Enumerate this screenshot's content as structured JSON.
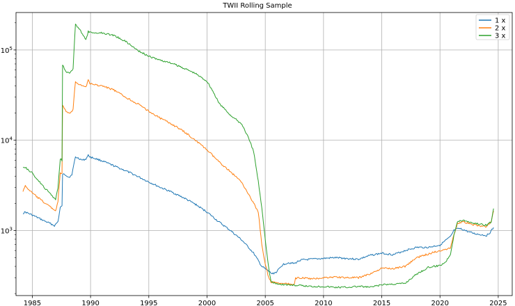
{
  "chart_data": {
    "type": "line",
    "title": "TWII Rolling Sample",
    "xlabel": "",
    "ylabel": "",
    "yscale": "log",
    "xlim": [
      1983.6,
      2026.2
    ],
    "ylim": [
      190,
      260000
    ],
    "grid": true,
    "legend_position": "top-right",
    "x_ticks": [
      1985,
      1990,
      1995,
      2000,
      2005,
      2010,
      2015,
      2020,
      2025
    ],
    "x_tick_labels": [
      "1985",
      "1990",
      "1995",
      "2000",
      "2005",
      "2010",
      "2015",
      "2020",
      "2025"
    ],
    "y_ticks": [
      1000,
      10000,
      100000
    ],
    "y_tick_labels": [
      {
        "base": "10",
        "exp": "3"
      },
      {
        "base": "10",
        "exp": "4"
      },
      {
        "base": "10",
        "exp": "5"
      }
    ],
    "series": [
      {
        "name": "1 x",
        "color": "#1f77b4",
        "points": [
          [
            1984.2,
            1550
          ],
          [
            1984.4,
            1600
          ],
          [
            1985.0,
            1480
          ],
          [
            1985.5,
            1380
          ],
          [
            1986.0,
            1280
          ],
          [
            1986.5,
            1200
          ],
          [
            1986.9,
            1130
          ],
          [
            1987.2,
            1250
          ],
          [
            1987.4,
            1800
          ],
          [
            1987.55,
            1850
          ],
          [
            1987.6,
            4200
          ],
          [
            1987.9,
            4100
          ],
          [
            1988.2,
            3900
          ],
          [
            1988.4,
            4200
          ],
          [
            1988.7,
            6500
          ],
          [
            1989.0,
            6300
          ],
          [
            1989.3,
            6000
          ],
          [
            1989.6,
            6200
          ],
          [
            1989.8,
            6800
          ],
          [
            1990.0,
            6500
          ],
          [
            1990.5,
            6200
          ],
          [
            1991.0,
            5900
          ],
          [
            1992.0,
            5200
          ],
          [
            1993.0,
            4600
          ],
          [
            1994.0,
            4000
          ],
          [
            1995.0,
            3450
          ],
          [
            1996.0,
            3000
          ],
          [
            1997.0,
            2650
          ],
          [
            1998.0,
            2300
          ],
          [
            1999.0,
            1950
          ],
          [
            2000.0,
            1600
          ],
          [
            2001.0,
            1250
          ],
          [
            2002.0,
            1000
          ],
          [
            2003.0,
            780
          ],
          [
            2004.0,
            560
          ],
          [
            2004.7,
            400
          ],
          [
            2005.2,
            360
          ],
          [
            2005.6,
            330
          ],
          [
            2006.0,
            350
          ],
          [
            2006.5,
            420
          ],
          [
            2007.0,
            440
          ],
          [
            2007.5,
            430
          ],
          [
            2008.0,
            470
          ],
          [
            2009.0,
            480
          ],
          [
            2010.0,
            490
          ],
          [
            2011.0,
            500
          ],
          [
            2012.0,
            490
          ],
          [
            2013.0,
            480
          ],
          [
            2014.0,
            530
          ],
          [
            2015.0,
            560
          ],
          [
            2016.0,
            540
          ],
          [
            2017.0,
            600
          ],
          [
            2018.0,
            650
          ],
          [
            2019.0,
            650
          ],
          [
            2020.0,
            690
          ],
          [
            2020.5,
            780
          ],
          [
            2020.9,
            850
          ],
          [
            2021.2,
            1000
          ],
          [
            2021.6,
            1050
          ],
          [
            2022.0,
            1020
          ],
          [
            2022.5,
            960
          ],
          [
            2023.0,
            920
          ],
          [
            2023.5,
            900
          ],
          [
            2024.0,
            880
          ],
          [
            2024.3,
            950
          ],
          [
            2024.6,
            1080
          ]
        ]
      },
      {
        "name": "2 x",
        "color": "#ff7f0e",
        "points": [
          [
            1984.2,
            2750
          ],
          [
            1984.4,
            3100
          ],
          [
            1985.0,
            2600
          ],
          [
            1985.5,
            2300
          ],
          [
            1986.0,
            2050
          ],
          [
            1986.5,
            1850
          ],
          [
            1987.0,
            1650
          ],
          [
            1987.2,
            2100
          ],
          [
            1987.4,
            4400
          ],
          [
            1987.55,
            4200
          ],
          [
            1987.6,
            24000
          ],
          [
            1987.9,
            21000
          ],
          [
            1988.2,
            19500
          ],
          [
            1988.5,
            22000
          ],
          [
            1988.7,
            45000
          ],
          [
            1989.0,
            42000
          ],
          [
            1989.3,
            40000
          ],
          [
            1989.6,
            39000
          ],
          [
            1989.8,
            46000
          ],
          [
            1990.0,
            42000
          ],
          [
            1991.0,
            40000
          ],
          [
            1992.0,
            36000
          ],
          [
            1993.0,
            30000
          ],
          [
            1994.0,
            25500
          ],
          [
            1995.0,
            21000
          ],
          [
            1996.0,
            17500
          ],
          [
            1997.0,
            15000
          ],
          [
            1998.0,
            12500
          ],
          [
            1999.0,
            10000
          ],
          [
            2000.0,
            7800
          ],
          [
            2001.0,
            5800
          ],
          [
            2002.0,
            4500
          ],
          [
            2003.0,
            3400
          ],
          [
            2004.0,
            2000
          ],
          [
            2004.4,
            1600
          ],
          [
            2004.7,
            700
          ],
          [
            2005.0,
            420
          ],
          [
            2005.3,
            300
          ],
          [
            2005.5,
            270
          ],
          [
            2006.0,
            260
          ],
          [
            2007.0,
            255
          ],
          [
            2007.5,
            250
          ],
          [
            2007.6,
            295
          ],
          [
            2008.0,
            300
          ],
          [
            2009.0,
            290
          ],
          [
            2010.0,
            300
          ],
          [
            2011.0,
            305
          ],
          [
            2012.0,
            300
          ],
          [
            2013.0,
            300
          ],
          [
            2014.0,
            330
          ],
          [
            2015.0,
            380
          ],
          [
            2016.0,
            380
          ],
          [
            2017.0,
            400
          ],
          [
            2018.0,
            500
          ],
          [
            2019.0,
            550
          ],
          [
            2020.0,
            600
          ],
          [
            2020.5,
            620
          ],
          [
            2020.9,
            650
          ],
          [
            2021.2,
            900
          ],
          [
            2021.5,
            1200
          ],
          [
            2022.0,
            1250
          ],
          [
            2023.0,
            1150
          ],
          [
            2024.0,
            1100
          ],
          [
            2024.4,
            1250
          ],
          [
            2024.6,
            1650
          ]
        ]
      },
      {
        "name": "3 x",
        "color": "#2ca02c",
        "points": [
          [
            1984.2,
            5100
          ],
          [
            1984.4,
            5000
          ],
          [
            1985.0,
            4300
          ],
          [
            1985.5,
            3600
          ],
          [
            1986.0,
            3000
          ],
          [
            1986.5,
            2600
          ],
          [
            1987.0,
            2200
          ],
          [
            1987.2,
            3000
          ],
          [
            1987.4,
            6300
          ],
          [
            1987.55,
            6000
          ],
          [
            1987.6,
            68000
          ],
          [
            1987.9,
            58000
          ],
          [
            1988.2,
            55000
          ],
          [
            1988.5,
            62000
          ],
          [
            1988.7,
            190000
          ],
          [
            1989.0,
            175000
          ],
          [
            1989.3,
            150000
          ],
          [
            1989.6,
            128000
          ],
          [
            1989.8,
            160000
          ],
          [
            1990.0,
            155000
          ],
          [
            1991.0,
            155000
          ],
          [
            1992.0,
            145000
          ],
          [
            1993.0,
            125000
          ],
          [
            1994.0,
            100000
          ],
          [
            1995.0,
            85000
          ],
          [
            1996.0,
            77000
          ],
          [
            1997.0,
            71000
          ],
          [
            1998.0,
            63000
          ],
          [
            1999.0,
            55000
          ],
          [
            2000.0,
            45000
          ],
          [
            2000.5,
            35000
          ],
          [
            2001.0,
            26000
          ],
          [
            2002.0,
            19000
          ],
          [
            2003.0,
            15000
          ],
          [
            2003.5,
            11000
          ],
          [
            2004.0,
            7500
          ],
          [
            2004.4,
            3500
          ],
          [
            2004.7,
            1800
          ],
          [
            2005.0,
            800
          ],
          [
            2005.3,
            380
          ],
          [
            2005.5,
            270
          ],
          [
            2006.0,
            255
          ],
          [
            2007.0,
            250
          ],
          [
            2008.0,
            245
          ],
          [
            2009.0,
            240
          ],
          [
            2010.0,
            240
          ],
          [
            2011.0,
            235
          ],
          [
            2012.0,
            235
          ],
          [
            2013.0,
            240
          ],
          [
            2014.0,
            235
          ],
          [
            2015.0,
            250
          ],
          [
            2016.0,
            255
          ],
          [
            2017.0,
            260
          ],
          [
            2018.0,
            330
          ],
          [
            2019.0,
            390
          ],
          [
            2020.0,
            410
          ],
          [
            2020.5,
            450
          ],
          [
            2020.9,
            550
          ],
          [
            2021.2,
            900
          ],
          [
            2021.5,
            1250
          ],
          [
            2022.0,
            1300
          ],
          [
            2023.0,
            1200
          ],
          [
            2024.0,
            1150
          ],
          [
            2024.4,
            1250
          ],
          [
            2024.6,
            1750
          ]
        ]
      }
    ]
  }
}
